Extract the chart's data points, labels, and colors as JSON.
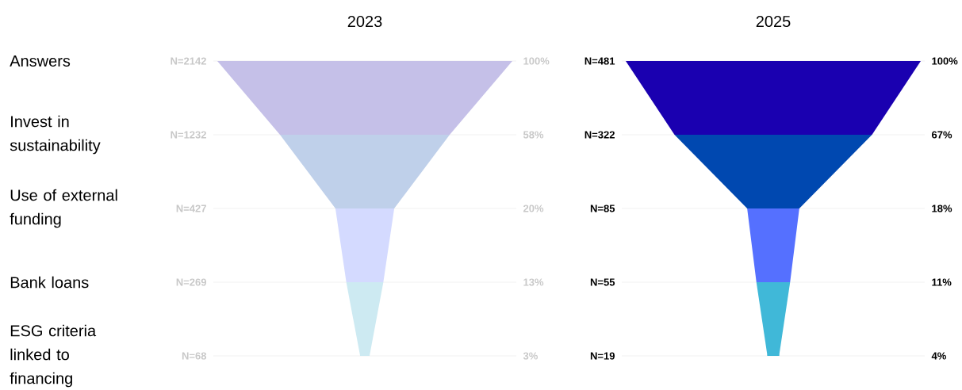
{
  "chart_data": {
    "type": "other",
    "categories": [
      "Answers",
      "Invest in sustainability",
      "Use of external funding",
      "Bank loans",
      "ESG criteria linked to financing"
    ],
    "series": [
      {
        "name": "2023",
        "values": [
          2142,
          1232,
          427,
          269,
          68
        ],
        "value_labels": [
          "N=2142",
          "N=1232",
          "N=427",
          "N=269",
          "N=68"
        ],
        "colors": [
          "#c5c0e8",
          "#bfd0ea",
          "#d4daff",
          "#cdeaf2",
          "#cdeaf2"
        ]
      },
      {
        "name": "2025",
        "values": [
          481,
          322,
          85,
          55,
          19
        ],
        "value_labels": [
          "N=481",
          "N=322",
          "N=85",
          "N=55",
          "N=19"
        ],
        "colors": [
          "#1a00b0",
          "#0048b0",
          "#5570ff",
          "#40b8d8",
          "#40b8d8"
        ]
      }
    ],
    "annotations": [
      "100%",
      "58%",
      "20%",
      "13%",
      "3%",
      "100%",
      "67%",
      "18%",
      "11%",
      "4%"
    ]
  }
}
